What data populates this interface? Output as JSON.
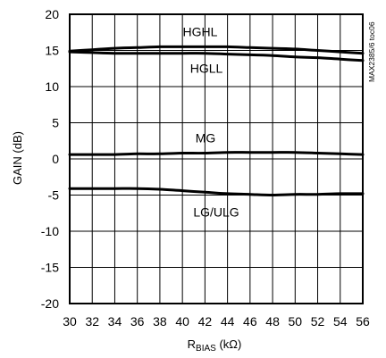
{
  "chart_data": {
    "type": "line",
    "xlabel_main": "R",
    "xlabel_sub": "BIAS",
    "xlabel_unit": " (kΩ)",
    "ylabel": "GAIN (dB)",
    "xlim": [
      30,
      56
    ],
    "ylim": [
      -20,
      20
    ],
    "x_ticks": [
      30,
      32,
      34,
      36,
      38,
      40,
      42,
      44,
      46,
      48,
      50,
      52,
      54,
      56
    ],
    "y_ticks": [
      20,
      15,
      10,
      5,
      0,
      -5,
      -10,
      -15,
      -20
    ],
    "grid": true,
    "side_code": "MAX2385/6 toc06",
    "series": [
      {
        "name": "HGHL",
        "x": [
          30,
          32,
          34,
          36,
          38,
          40,
          42,
          44,
          46,
          48,
          50,
          52,
          54,
          56
        ],
        "values": [
          14.9,
          15.1,
          15.3,
          15.4,
          15.5,
          15.5,
          15.5,
          15.5,
          15.4,
          15.3,
          15.2,
          15.0,
          14.8,
          14.6
        ]
      },
      {
        "name": "HGLL",
        "x": [
          30,
          32,
          34,
          36,
          38,
          40,
          42,
          44,
          46,
          48,
          50,
          52,
          54,
          56
        ],
        "values": [
          14.8,
          14.7,
          14.6,
          14.6,
          14.6,
          14.6,
          14.6,
          14.5,
          14.4,
          14.3,
          14.1,
          14.0,
          13.8,
          13.6
        ]
      },
      {
        "name": "MG",
        "x": [
          30,
          32,
          34,
          36,
          38,
          40,
          42,
          44,
          46,
          48,
          50,
          52,
          54,
          56
        ],
        "values": [
          0.6,
          0.6,
          0.6,
          0.7,
          0.7,
          0.8,
          0.8,
          0.9,
          0.9,
          0.9,
          0.9,
          0.8,
          0.7,
          0.6
        ]
      },
      {
        "name": "LG/ULG",
        "x": [
          30,
          32,
          34,
          36,
          38,
          40,
          42,
          44,
          46,
          48,
          50,
          52,
          54,
          56
        ],
        "values": [
          -4.1,
          -4.1,
          -4.1,
          -4.1,
          -4.2,
          -4.4,
          -4.6,
          -4.8,
          -4.9,
          -5.0,
          -4.9,
          -4.9,
          -4.8,
          -4.8
        ]
      }
    ]
  }
}
